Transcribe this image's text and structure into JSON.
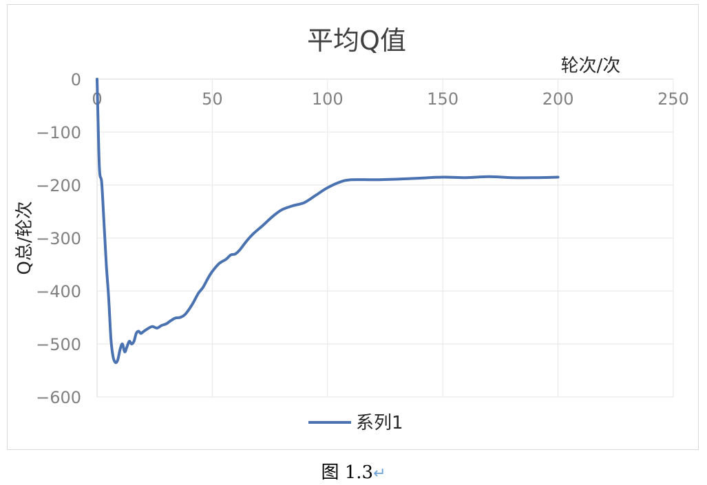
{
  "chart_data": {
    "type": "line",
    "title": "平均Q值",
    "xlabel": "轮次/次",
    "ylabel": "Q总/轮次",
    "xlim": [
      0,
      250
    ],
    "ylim": [
      -600,
      0
    ],
    "x_ticks": [
      "0",
      "50",
      "100",
      "150",
      "200",
      "250"
    ],
    "y_ticks": [
      "0",
      "-100",
      "-200",
      "-300",
      "-400",
      "-500",
      "-600"
    ],
    "grid": true,
    "legend_position": "bottom",
    "color": "#4a72b0",
    "series": [
      {
        "name": "系列1",
        "x": [
          0,
          1,
          2,
          3,
          4,
          5,
          6,
          7,
          8,
          9,
          10,
          11,
          12,
          13,
          14,
          15,
          16,
          17,
          18,
          19,
          20,
          22,
          24,
          26,
          28,
          30,
          32,
          34,
          36,
          38,
          40,
          42,
          44,
          46,
          48,
          50,
          53,
          56,
          58,
          60,
          62,
          65,
          68,
          72,
          76,
          80,
          85,
          90,
          95,
          100,
          105,
          110,
          120,
          130,
          140,
          150,
          160,
          170,
          180,
          190,
          200
        ],
        "y": [
          0,
          -165,
          -195,
          -270,
          -350,
          -410,
          -490,
          -525,
          -535,
          -530,
          -510,
          -500,
          -515,
          -505,
          -495,
          -500,
          -495,
          -480,
          -476,
          -480,
          -477,
          -471,
          -467,
          -470,
          -465,
          -462,
          -456,
          -451,
          -450,
          -445,
          -434,
          -420,
          -404,
          -393,
          -377,
          -363,
          -348,
          -340,
          -332,
          -330,
          -322,
          -305,
          -291,
          -276,
          -260,
          -247,
          -239,
          -233,
          -219,
          -205,
          -195,
          -190,
          -190,
          -189,
          -187,
          -185,
          -186,
          -184,
          -186,
          -186,
          -185
        ]
      }
    ]
  },
  "caption": {
    "label": "图 1.3",
    "return_mark": "↵"
  }
}
